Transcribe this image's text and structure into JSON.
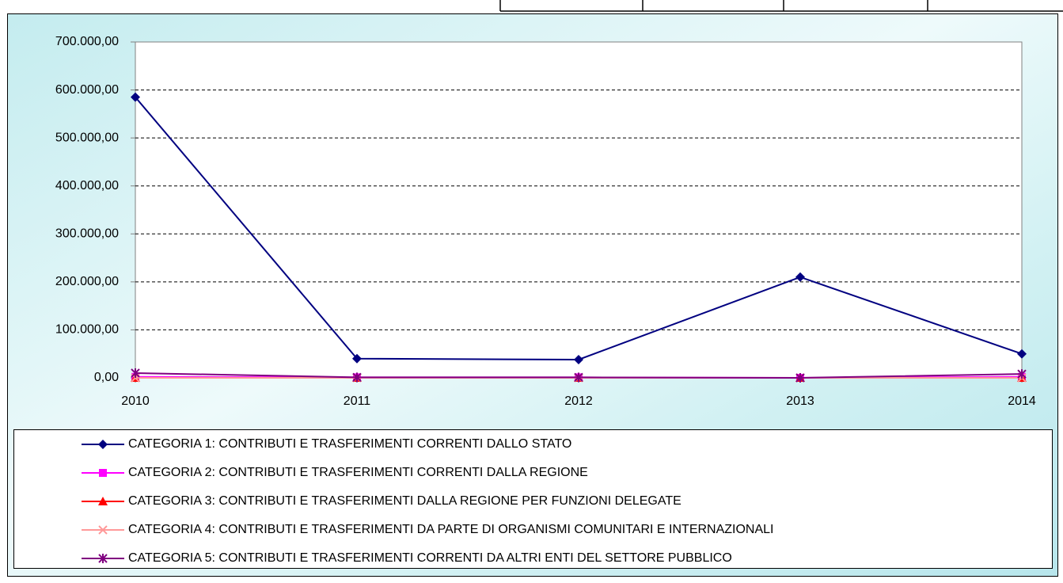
{
  "chart_data": {
    "type": "line",
    "categories": [
      "2010",
      "2011",
      "2012",
      "2013",
      "2014"
    ],
    "series": [
      {
        "name": "CATEGORIA 1: CONTRIBUTI E TRASFERIMENTI CORRENTI DALLO STATO",
        "color": "#000080",
        "marker": "diamond",
        "values": [
          585000,
          40000,
          38000,
          210000,
          50000
        ]
      },
      {
        "name": "CATEGORIA 2: CONTRIBUTI E TRASFERIMENTI CORRENTI DALLA REGIONE",
        "color": "#ff00ff",
        "marker": "square",
        "values": [
          2000,
          1000,
          1000,
          0,
          2000
        ]
      },
      {
        "name": "CATEGORIA 3: CONTRIBUTI E TRASFERIMENTI DALLA REGIONE PER FUNZIONI DELEGATE",
        "color": "#ff0000",
        "marker": "triangle",
        "values": [
          0,
          0,
          0,
          0,
          0
        ]
      },
      {
        "name": "CATEGORIA 4: CONTRIBUTI E TRASFERIMENTI DA PARTE DI ORGANISMI COMUNITARI E INTERNAZIONALI",
        "color": "#ff9999",
        "marker": "x",
        "values": [
          0,
          0,
          0,
          0,
          0
        ]
      },
      {
        "name": "CATEGORIA 5: CONTRIBUTI E TRASFERIMENTI CORRENTI DA ALTRI ENTI DEL SETTORE PUBBLICO",
        "color": "#800080",
        "marker": "star",
        "values": [
          10000,
          1000,
          1000,
          0,
          8000
        ]
      }
    ],
    "ylim": [
      0,
      700000
    ],
    "yticks": [
      {
        "value": 0,
        "label": "0,00"
      },
      {
        "value": 100000,
        "label": "100.000,00"
      },
      {
        "value": 200000,
        "label": "200.000,00"
      },
      {
        "value": 300000,
        "label": "300.000,00"
      },
      {
        "value": 400000,
        "label": "400.000,00"
      },
      {
        "value": 500000,
        "label": "500.000,00"
      },
      {
        "value": 600000,
        "label": "600.000,00"
      },
      {
        "value": 700000,
        "label": "700.000,00"
      }
    ],
    "grid": true,
    "legend": "bottom"
  }
}
